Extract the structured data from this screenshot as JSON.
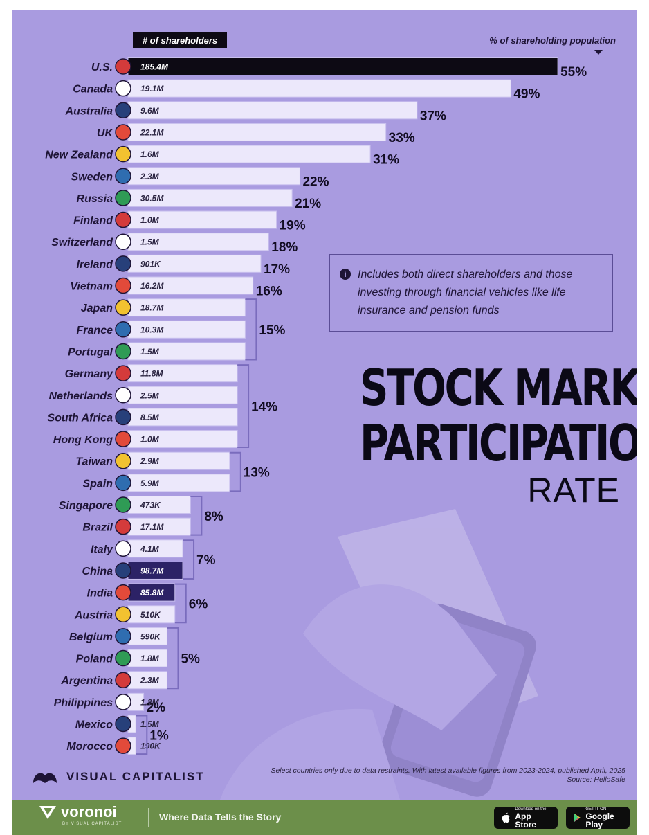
{
  "chart_data": {
    "type": "bar",
    "title": "STOCK MARKET PARTICIPATION",
    "subtitle": "RATE",
    "bar_header": "# of shareholders",
    "value_header": "% of shareholding population",
    "categories": [
      "U.S.",
      "Canada",
      "Australia",
      "UK",
      "New Zealand",
      "Sweden",
      "Russia",
      "Finland",
      "Switzerland",
      "Ireland",
      "Vietnam",
      "Japan",
      "France",
      "Portugal",
      "Germany",
      "Netherlands",
      "South Africa",
      "Hong Kong",
      "Taiwan",
      "Spain",
      "Singapore",
      "Brazil",
      "Italy",
      "China",
      "India",
      "Austria",
      "Belgium",
      "Poland",
      "Argentina",
      "Philippines",
      "Mexico",
      "Morocco"
    ],
    "series": [
      {
        "name": "% of shareholding population",
        "values": [
          55,
          49,
          37,
          33,
          31,
          22,
          21,
          19,
          18,
          17,
          16,
          15,
          15,
          15,
          14,
          14,
          14,
          14,
          13,
          13,
          8,
          8,
          7,
          7,
          6,
          6,
          5,
          5,
          5,
          2,
          1,
          1
        ]
      }
    ],
    "shareholders": [
      "185.4M",
      "19.1M",
      "9.6M",
      "22.1M",
      "1.6M",
      "2.3M",
      "30.5M",
      "1.0M",
      "1.5M",
      "901K",
      "16.2M",
      "18.7M",
      "10.3M",
      "1.5M",
      "11.8M",
      "2.5M",
      "8.5M",
      "1.0M",
      "2.9M",
      "5.9M",
      "473K",
      "17.1M",
      "4.1M",
      "98.7M",
      "85.8M",
      "510K",
      "590K",
      "1.8M",
      "2.3M",
      "1.8M",
      "1.5M",
      "190K"
    ],
    "pct_labels": [
      "55%",
      "49%",
      "37%",
      "33%",
      "31%",
      "22%",
      "21%",
      "19%",
      "18%",
      "17%",
      "16%",
      "15%",
      "14%",
      "13%",
      "8%",
      "7%",
      "6%",
      "5%",
      "2%",
      "1%"
    ],
    "highlight_colors": {
      "U.S.": "#0d0a14",
      "China": "#2c2266",
      "India": "#2c2266"
    },
    "bar_color": "#ece8fb",
    "xlim": [
      0,
      58
    ]
  },
  "colors": {
    "background": "#a99be0",
    "footer": "#6c8f4a",
    "text": "#1e1436"
  },
  "note": {
    "icon": "info-icon",
    "text": "Includes both direct shareholders and those investing through financial vehicles like life insurance and pension funds"
  },
  "title_line1": "STOCK MARKET",
  "title_line2": "PARTICIPATION",
  "title_line3": "RATE",
  "footnote_line1": "Select countries only due to data restraints. With latest available figures from 2023-2024, published April, 2025",
  "footnote_line2": "Source: HelloSafe",
  "logo_text": "VISUAL CAPITALIST",
  "footer": {
    "brand": "voronoi",
    "byline": "BY VISUAL CAPITALIST",
    "tagline": "Where Data Tells the Story",
    "app_store_small": "Download on the",
    "app_store_large": "App Store",
    "play_small": "GET IT ON",
    "play_large": "Google Play"
  }
}
